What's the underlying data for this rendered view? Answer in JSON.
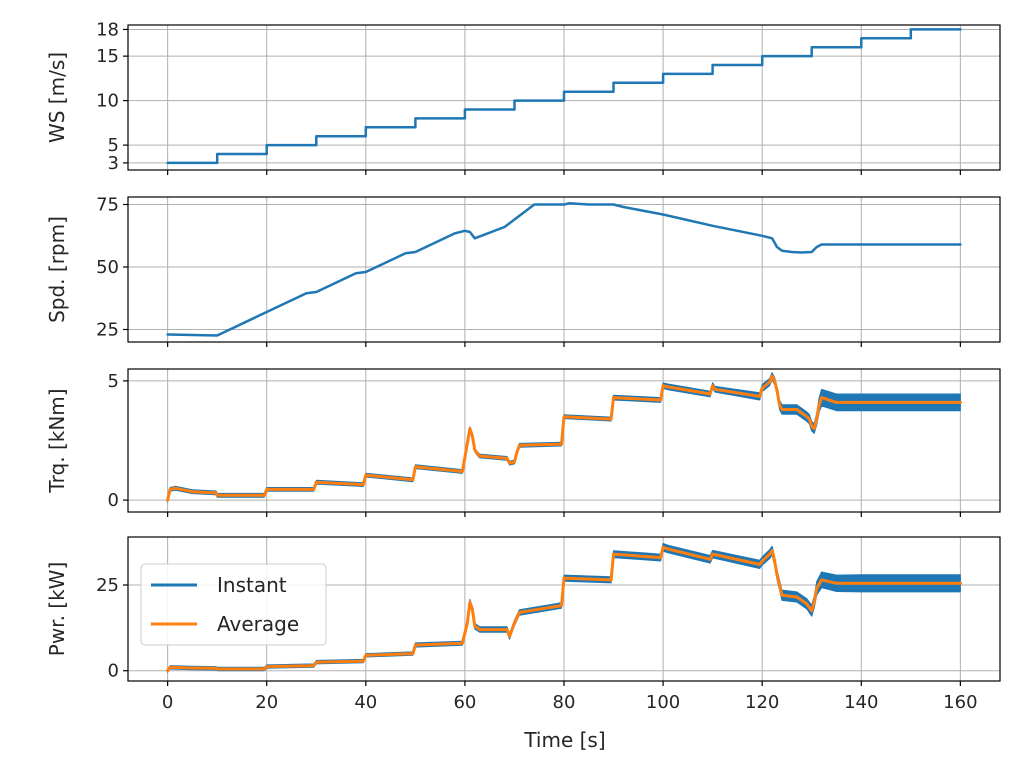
{
  "chart_data": {
    "type": "line",
    "xlabel": "Time [s]",
    "xlim": [
      -8,
      168
    ],
    "x_ticks": [
      0,
      20,
      40,
      60,
      80,
      100,
      120,
      140,
      160
    ],
    "x_tick_labels": [
      "0",
      "20",
      "40",
      "60",
      "80",
      "100",
      "120",
      "140",
      "160"
    ],
    "grid": true,
    "legend_placement": "center-left (bottom panel)",
    "colors": {
      "instant": "#1f77b4",
      "average": "#ff7f0e"
    },
    "panels": [
      {
        "ylabel": "WS [m/s]",
        "ylim": [
          2.2,
          18.5
        ],
        "y_ticks": [
          3,
          5,
          10,
          15,
          18
        ],
        "y_tick_labels": [
          "3",
          "5",
          "10",
          "15",
          "18"
        ],
        "series": [
          {
            "x": [
              0,
              10,
              10,
              20,
              20,
              30,
              30,
              40,
              40,
              50,
              50,
              60,
              60,
              70,
              70,
              80,
              80,
              90,
              90,
              100,
              100,
              110,
              110,
              120,
              120,
              130,
              130,
              140,
              140,
              150,
              150,
              160
            ],
            "y": [
              3,
              3,
              4,
              4,
              5,
              5,
              6,
              6,
              7,
              7,
              8,
              8,
              9,
              9,
              10,
              10,
              11,
              11,
              12,
              12,
              13,
              13,
              14,
              14,
              15,
              15,
              16,
              16,
              17,
              17,
              18,
              18
            ]
          }
        ]
      },
      {
        "ylabel": "Spd. [rpm]",
        "ylim": [
          20,
          78
        ],
        "y_ticks": [
          25,
          50,
          75
        ],
        "y_tick_labels": [
          "25",
          "50",
          "75"
        ],
        "series": [
          {
            "x": [
              0,
              10,
              20,
              28,
              30,
              38,
              40,
              48,
              50,
              58,
              60,
              61,
              62,
              68,
              70,
              72,
              74,
              80,
              81,
              85,
              90,
              92,
              100,
              110,
              120,
              122,
              123,
              124,
              126,
              128,
              130,
              131,
              132,
              140,
              150,
              160
            ],
            "y": [
              23,
              22.6,
              32,
              39.5,
              40,
              47.5,
              48,
              55.5,
              56,
              63.5,
              64.5,
              64,
              61.5,
              66,
              69,
              72,
              75,
              75,
              75.5,
              75,
              75,
              74,
              71,
              66.5,
              62.5,
              61.5,
              58,
              56.5,
              56,
              55.8,
              56,
              58,
              59,
              59,
              59,
              59
            ]
          }
        ]
      },
      {
        "ylabel": "Trq. [kNm]",
        "ylim": [
          -0.5,
          5.5
        ],
        "y_ticks": [
          0,
          5
        ],
        "y_tick_labels": [
          "0",
          "5"
        ],
        "series": [
          {
            "name": "Instant",
            "band": true,
            "x": [
              0,
              0.5,
              1.5,
              5,
              9.8,
              10,
              19.5,
              20,
              29.5,
              30,
              39.5,
              40,
              49.5,
              50,
              59.5,
              60,
              60.5,
              61,
              61.5,
              62,
              62.5,
              63,
              68.5,
              69,
              70,
              70.5,
              71,
              79.5,
              80,
              89.5,
              90,
              99.5,
              100,
              101,
              109.5,
              110,
              110.5,
              119.5,
              120,
              121.5,
              122,
              122.5,
              123,
              123.5,
              124,
              127,
              129,
              129.5,
              130,
              130.5,
              131,
              131.5,
              132,
              135,
              140,
              150,
              160
            ],
            "y": [
              0,
              0.45,
              0.5,
              0.35,
              0.3,
              0.2,
              0.2,
              0.45,
              0.45,
              0.75,
              0.65,
              1.05,
              0.85,
              1.4,
              1.2,
              1.8,
              2.4,
              3.0,
              2.7,
              2.1,
              1.95,
              1.85,
              1.75,
              1.55,
              1.6,
              2.0,
              2.3,
              2.35,
              3.5,
              3.4,
              4.3,
              4.2,
              4.8,
              4.75,
              4.45,
              4.8,
              4.65,
              4.35,
              4.7,
              4.95,
              5.2,
              5.0,
              4.6,
              4.0,
              3.8,
              3.8,
              3.5,
              3.4,
              3.1,
              3.0,
              3.4,
              4.0,
              4.3,
              4.1,
              4.1,
              4.1,
              4.1
            ],
            "band_halfwidth": [
              0.08,
              0.08,
              0.08,
              0.08,
              0.08,
              0.08,
              0.08,
              0.08,
              0.08,
              0.08,
              0.08,
              0.08,
              0.08,
              0.08,
              0.08,
              0.08,
              0.08,
              0.08,
              0.08,
              0.08,
              0.08,
              0.08,
              0.08,
              0.08,
              0.08,
              0.08,
              0.08,
              0.08,
              0.08,
              0.08,
              0.1,
              0.1,
              0.12,
              0.12,
              0.12,
              0.12,
              0.12,
              0.15,
              0.15,
              0.15,
              0.15,
              0.15,
              0.15,
              0.2,
              0.2,
              0.2,
              0.2,
              0.2,
              0.2,
              0.2,
              0.25,
              0.3,
              0.35,
              0.35,
              0.35,
              0.35,
              0.35
            ]
          },
          {
            "name": "Average",
            "x": [
              0,
              0.5,
              1.5,
              5,
              9.8,
              10,
              19.5,
              20,
              29.5,
              30,
              39.5,
              40,
              49.5,
              50,
              59.5,
              60,
              60.5,
              61,
              61.5,
              62,
              62.5,
              63,
              68.5,
              69,
              70,
              70.5,
              71,
              79.5,
              80,
              89.5,
              90,
              99.5,
              100,
              101,
              109.5,
              110,
              110.5,
              119.5,
              120,
              121.5,
              122,
              122.5,
              123,
              123.5,
              124,
              127,
              129,
              129.5,
              130,
              130.5,
              131,
              131.5,
              132,
              135,
              140,
              150,
              160
            ],
            "y": [
              0,
              0.45,
              0.5,
              0.35,
              0.3,
              0.2,
              0.2,
              0.45,
              0.45,
              0.75,
              0.65,
              1.05,
              0.85,
              1.4,
              1.2,
              1.8,
              2.4,
              3.0,
              2.7,
              2.1,
              1.95,
              1.85,
              1.75,
              1.55,
              1.6,
              2.0,
              2.3,
              2.35,
              3.5,
              3.4,
              4.3,
              4.2,
              4.8,
              4.75,
              4.45,
              4.8,
              4.65,
              4.35,
              4.7,
              4.95,
              5.2,
              5.0,
              4.6,
              4.0,
              3.8,
              3.8,
              3.5,
              3.4,
              3.1,
              3.0,
              3.4,
              4.0,
              4.3,
              4.1,
              4.1,
              4.1,
              4.1
            ]
          }
        ]
      },
      {
        "ylabel": "Pwr. [kW]",
        "ylim": [
          -3,
          39
        ],
        "y_ticks": [
          0,
          25
        ],
        "y_tick_labels": [
          "0",
          "25"
        ],
        "legend": [
          "Instant",
          "Average"
        ],
        "series": [
          {
            "name": "Instant",
            "band": true,
            "x": [
              0,
              0.5,
              5,
              9.8,
              10,
              19.5,
              20,
              29.5,
              30,
              39.5,
              40,
              49.5,
              50,
              59.5,
              60,
              60.5,
              61,
              61.5,
              62,
              63,
              68.5,
              69,
              70,
              71,
              79.5,
              80,
              89.5,
              90,
              99.5,
              100,
              101,
              109.5,
              110,
              119.5,
              120,
              121.5,
              122,
              122.5,
              123,
              124,
              127,
              129,
              130,
              130.5,
              131,
              132,
              135,
              140,
              150,
              160
            ],
            "y": [
              0,
              1.0,
              0.8,
              0.7,
              0.5,
              0.5,
              1.2,
              1.5,
              2.5,
              2.8,
              4.5,
              5.0,
              7.5,
              8.0,
              11.0,
              14.0,
              20.0,
              18.0,
              13.0,
              12.0,
              12.0,
              10.0,
              14.0,
              17.0,
              19.0,
              27.0,
              26.5,
              34.0,
              33.0,
              36.0,
              35.5,
              32.5,
              34.0,
              31.0,
              32.0,
              34.0,
              35.0,
              32.0,
              28.0,
              22.0,
              21.5,
              19.5,
              17.5,
              20.0,
              24.0,
              26.5,
              25.5,
              25.5,
              25.5,
              25.5
            ],
            "band_halfwidth": [
              0.5,
              0.5,
              0.5,
              0.5,
              0.5,
              0.5,
              0.5,
              0.5,
              0.5,
              0.5,
              0.5,
              0.5,
              0.6,
              0.6,
              0.7,
              0.8,
              0.8,
              0.8,
              0.8,
              0.8,
              0.8,
              0.8,
              0.8,
              0.8,
              0.8,
              0.9,
              0.9,
              1.0,
              1.0,
              1.1,
              1.1,
              1.1,
              1.1,
              1.2,
              1.2,
              1.3,
              1.3,
              1.3,
              1.4,
              1.5,
              1.5,
              1.5,
              1.6,
              1.7,
              2.0,
              2.3,
              2.4,
              2.5,
              2.5,
              2.5
            ]
          },
          {
            "name": "Average",
            "x": [
              0,
              0.5,
              5,
              9.8,
              10,
              19.5,
              20,
              29.5,
              30,
              39.5,
              40,
              49.5,
              50,
              59.5,
              60,
              60.5,
              61,
              61.5,
              62,
              63,
              68.5,
              69,
              70,
              71,
              79.5,
              80,
              89.5,
              90,
              99.5,
              100,
              101,
              109.5,
              110,
              119.5,
              120,
              121.5,
              122,
              122.5,
              123,
              124,
              127,
              129,
              130,
              130.5,
              131,
              132,
              135,
              140,
              150,
              160
            ],
            "y": [
              0,
              1.0,
              0.8,
              0.7,
              0.5,
              0.5,
              1.2,
              1.5,
              2.5,
              2.8,
              4.5,
              5.0,
              7.5,
              8.0,
              11.0,
              14.0,
              20.0,
              18.0,
              13.0,
              12.0,
              12.0,
              10.0,
              14.0,
              17.0,
              19.0,
              27.0,
              26.5,
              34.0,
              33.0,
              36.0,
              35.5,
              32.5,
              34.0,
              31.0,
              32.0,
              34.0,
              35.0,
              32.0,
              28.0,
              22.0,
              21.5,
              19.5,
              17.5,
              20.0,
              24.0,
              26.5,
              25.5,
              25.5,
              25.5,
              25.5
            ]
          }
        ]
      }
    ]
  }
}
